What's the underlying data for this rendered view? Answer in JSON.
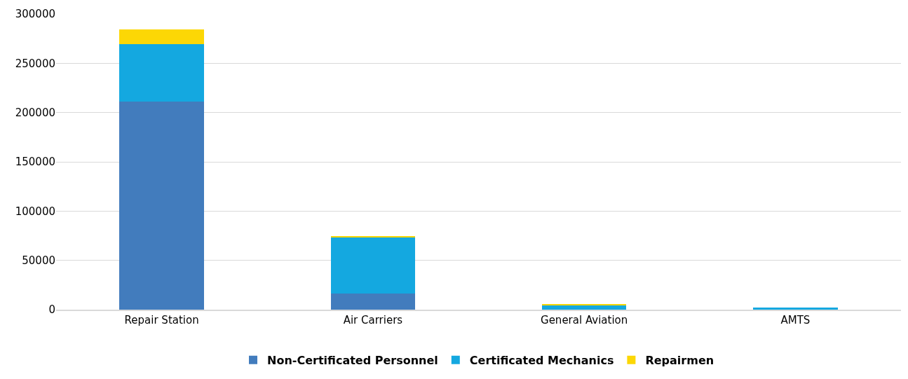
{
  "chart_data": {
    "type": "bar",
    "stacked": true,
    "categories": [
      "Repair Station",
      "Air Carriers",
      "General Aviation",
      "AMTS"
    ],
    "series": [
      {
        "name": "Non-Certificated Personnel",
        "color": "#427cbd",
        "values": [
          211000,
          16000,
          0,
          0
        ]
      },
      {
        "name": "Certificated Mechanics",
        "color": "#14a8e0",
        "values": [
          58600,
          57000,
          4600,
          1800
        ]
      },
      {
        "name": "Repairmen",
        "color": "#fcd705",
        "values": [
          15000,
          1600,
          400,
          0
        ]
      }
    ],
    "ylim": [
      0,
      300000
    ],
    "yticks": [
      0,
      50000,
      100000,
      150000,
      200000,
      250000,
      300000
    ],
    "grid": "y",
    "legend": "bottom"
  }
}
